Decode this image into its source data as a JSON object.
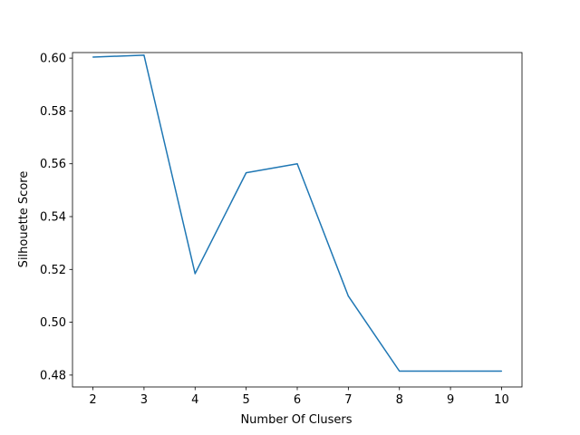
{
  "chart_data": {
    "type": "line",
    "title": "",
    "xlabel": "Number Of Clusers",
    "ylabel": "Silhouette Score",
    "x": [
      2,
      3,
      4,
      5,
      6,
      7,
      8,
      9,
      10
    ],
    "series": [
      {
        "values": [
          0.6004,
          0.6011,
          0.5184,
          0.5566,
          0.56,
          0.5099,
          0.4815,
          0.4815,
          0.4815
        ]
      }
    ],
    "xticks": [
      "2",
      "3",
      "4",
      "5",
      "6",
      "7",
      "8",
      "9",
      "10"
    ],
    "yticks": [
      "0.48",
      "0.50",
      "0.52",
      "0.54",
      "0.56",
      "0.58",
      "0.60"
    ],
    "xlim": [
      1.6,
      10.4
    ],
    "ylim": [
      0.4755,
      0.6021
    ],
    "grid": false,
    "line_color": "#1f77b4"
  }
}
